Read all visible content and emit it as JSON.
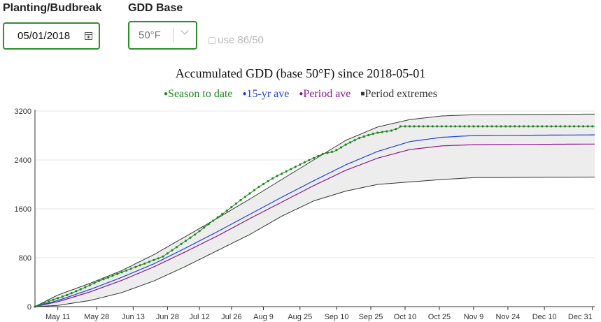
{
  "controls": {
    "planting_label": "Planting/Budbreak",
    "planting_value": "05/01/2018",
    "gdd_base_label": "GDD Base",
    "gdd_base_value": "50°F",
    "use8650_label": "use 86/50",
    "use8650_checked": false
  },
  "chart_data": {
    "type": "line",
    "title": "Accumulated GDD (base 50°F) since 2018-05-01",
    "legend": [
      "Season to date",
      "15-yr ave",
      "Period ave",
      "Period extremes"
    ],
    "legend_placement": "top-center",
    "colors": {
      "season": "#1a8a1a",
      "ave15": "#1f3fe6",
      "period_ave": "#8a1a8a",
      "extremes": "#333333",
      "band": "#ededed"
    },
    "xlabel": "",
    "ylabel": "",
    "xlim": [
      "2018-05-01",
      "2019-01-01"
    ],
    "ylim": [
      0,
      3200
    ],
    "yticks": [
      0,
      800,
      1600,
      2400,
      3200
    ],
    "xticks": [
      "May 11",
      "May 28",
      "Jun 13",
      "Jun 28",
      "Jul 12",
      "Jul 26",
      "Aug 9",
      "Aug 25",
      "Sep 10",
      "Sep 25",
      "Oct 10",
      "Oct 25",
      "Nov 9",
      "Nov 24",
      "Dec 10",
      "Dec 31"
    ],
    "grid": "horizontal",
    "series": [
      {
        "name": "Season to date",
        "x": [
          "2018-05-01",
          "2018-05-08",
          "2018-05-15",
          "2018-05-22",
          "2018-05-29",
          "2018-06-05",
          "2018-06-12",
          "2018-06-19",
          "2018-06-26",
          "2018-07-03",
          "2018-07-10",
          "2018-07-17",
          "2018-07-24",
          "2018-07-31",
          "2018-08-07",
          "2018-08-14",
          "2018-08-21",
          "2018-08-28",
          "2018-09-04",
          "2018-09-09",
          "2018-09-14",
          "2018-09-20",
          "2018-09-27",
          "2018-10-04",
          "2018-10-07",
          "2018-10-08",
          "2018-10-15",
          "2018-10-31",
          "2018-12-31"
        ],
        "y": [
          0,
          100,
          190,
          300,
          420,
          520,
          620,
          720,
          820,
          1000,
          1180,
          1380,
          1570,
          1770,
          1960,
          2120,
          2250,
          2380,
          2500,
          2540,
          2650,
          2760,
          2840,
          2880,
          2920,
          2950,
          2950,
          2950,
          2950
        ]
      },
      {
        "name": "15-yr ave",
        "x": [
          "2018-05-01",
          "2018-05-11",
          "2018-05-25",
          "2018-06-08",
          "2018-06-22",
          "2018-07-06",
          "2018-07-20",
          "2018-08-03",
          "2018-08-17",
          "2018-08-31",
          "2018-09-14",
          "2018-09-28",
          "2018-10-12",
          "2018-10-26",
          "2018-11-09",
          "2018-12-31"
        ],
        "y": [
          0,
          100,
          280,
          480,
          700,
          960,
          1230,
          1510,
          1790,
          2060,
          2320,
          2540,
          2700,
          2770,
          2800,
          2810
        ]
      },
      {
        "name": "Period ave",
        "x": [
          "2018-05-01",
          "2018-05-11",
          "2018-05-25",
          "2018-06-08",
          "2018-06-22",
          "2018-07-06",
          "2018-07-20",
          "2018-08-03",
          "2018-08-17",
          "2018-08-31",
          "2018-09-14",
          "2018-09-28",
          "2018-10-12",
          "2018-10-26",
          "2018-11-09",
          "2018-12-31"
        ],
        "y": [
          0,
          80,
          240,
          430,
          650,
          900,
          1160,
          1440,
          1710,
          1980,
          2230,
          2430,
          2570,
          2630,
          2650,
          2660
        ]
      },
      {
        "name": "Period extremes (upper)",
        "x": [
          "2018-05-01",
          "2018-05-11",
          "2018-05-25",
          "2018-06-08",
          "2018-06-22",
          "2018-07-06",
          "2018-07-20",
          "2018-08-03",
          "2018-08-17",
          "2018-08-31",
          "2018-09-14",
          "2018-09-28",
          "2018-10-12",
          "2018-10-26",
          "2018-11-09",
          "2018-12-31"
        ],
        "y": [
          0,
          190,
          380,
          590,
          850,
          1150,
          1450,
          1760,
          2080,
          2400,
          2720,
          2940,
          3060,
          3120,
          3140,
          3150
        ]
      },
      {
        "name": "Period extremes (lower)",
        "x": [
          "2018-05-01",
          "2018-05-11",
          "2018-05-25",
          "2018-06-08",
          "2018-06-22",
          "2018-07-06",
          "2018-07-20",
          "2018-08-03",
          "2018-08-17",
          "2018-08-31",
          "2018-09-14",
          "2018-09-28",
          "2018-10-12",
          "2018-10-26",
          "2018-11-09",
          "2018-12-31"
        ],
        "y": [
          0,
          20,
          100,
          230,
          420,
          660,
          920,
          1180,
          1480,
          1730,
          1890,
          2000,
          2040,
          2080,
          2110,
          2120
        ]
      }
    ]
  }
}
